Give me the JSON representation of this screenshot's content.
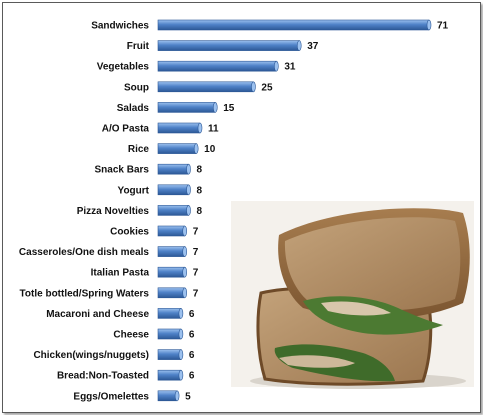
{
  "chart_data": {
    "type": "bar",
    "orientation": "horizontal",
    "categories": [
      "Sandwiches",
      "Fruit",
      "Vegetables",
      "Soup",
      "Salads",
      "A/O Pasta",
      "Rice",
      "Snack Bars",
      "Yogurt",
      "Pizza Novelties",
      "Cookies",
      "Casseroles/One dish meals",
      "Italian Pasta",
      "Totle bottled/Spring Waters",
      "Macaroni and Cheese",
      "Cheese",
      "Chicken(wings/nuggets)",
      "Bread:Non-Toasted",
      "Eggs/Omelettes"
    ],
    "values": [
      71,
      37,
      31,
      25,
      15,
      11,
      10,
      8,
      8,
      8,
      7,
      7,
      7,
      7,
      6,
      6,
      6,
      6,
      5
    ],
    "xlim": [
      0,
      75
    ],
    "grid": false,
    "colors": {
      "bar": "#4f82c8",
      "bar_light": "#9cc1ef",
      "bar_dark": "#2c5896"
    }
  },
  "image": {
    "icon": "sandwich-photo"
  }
}
